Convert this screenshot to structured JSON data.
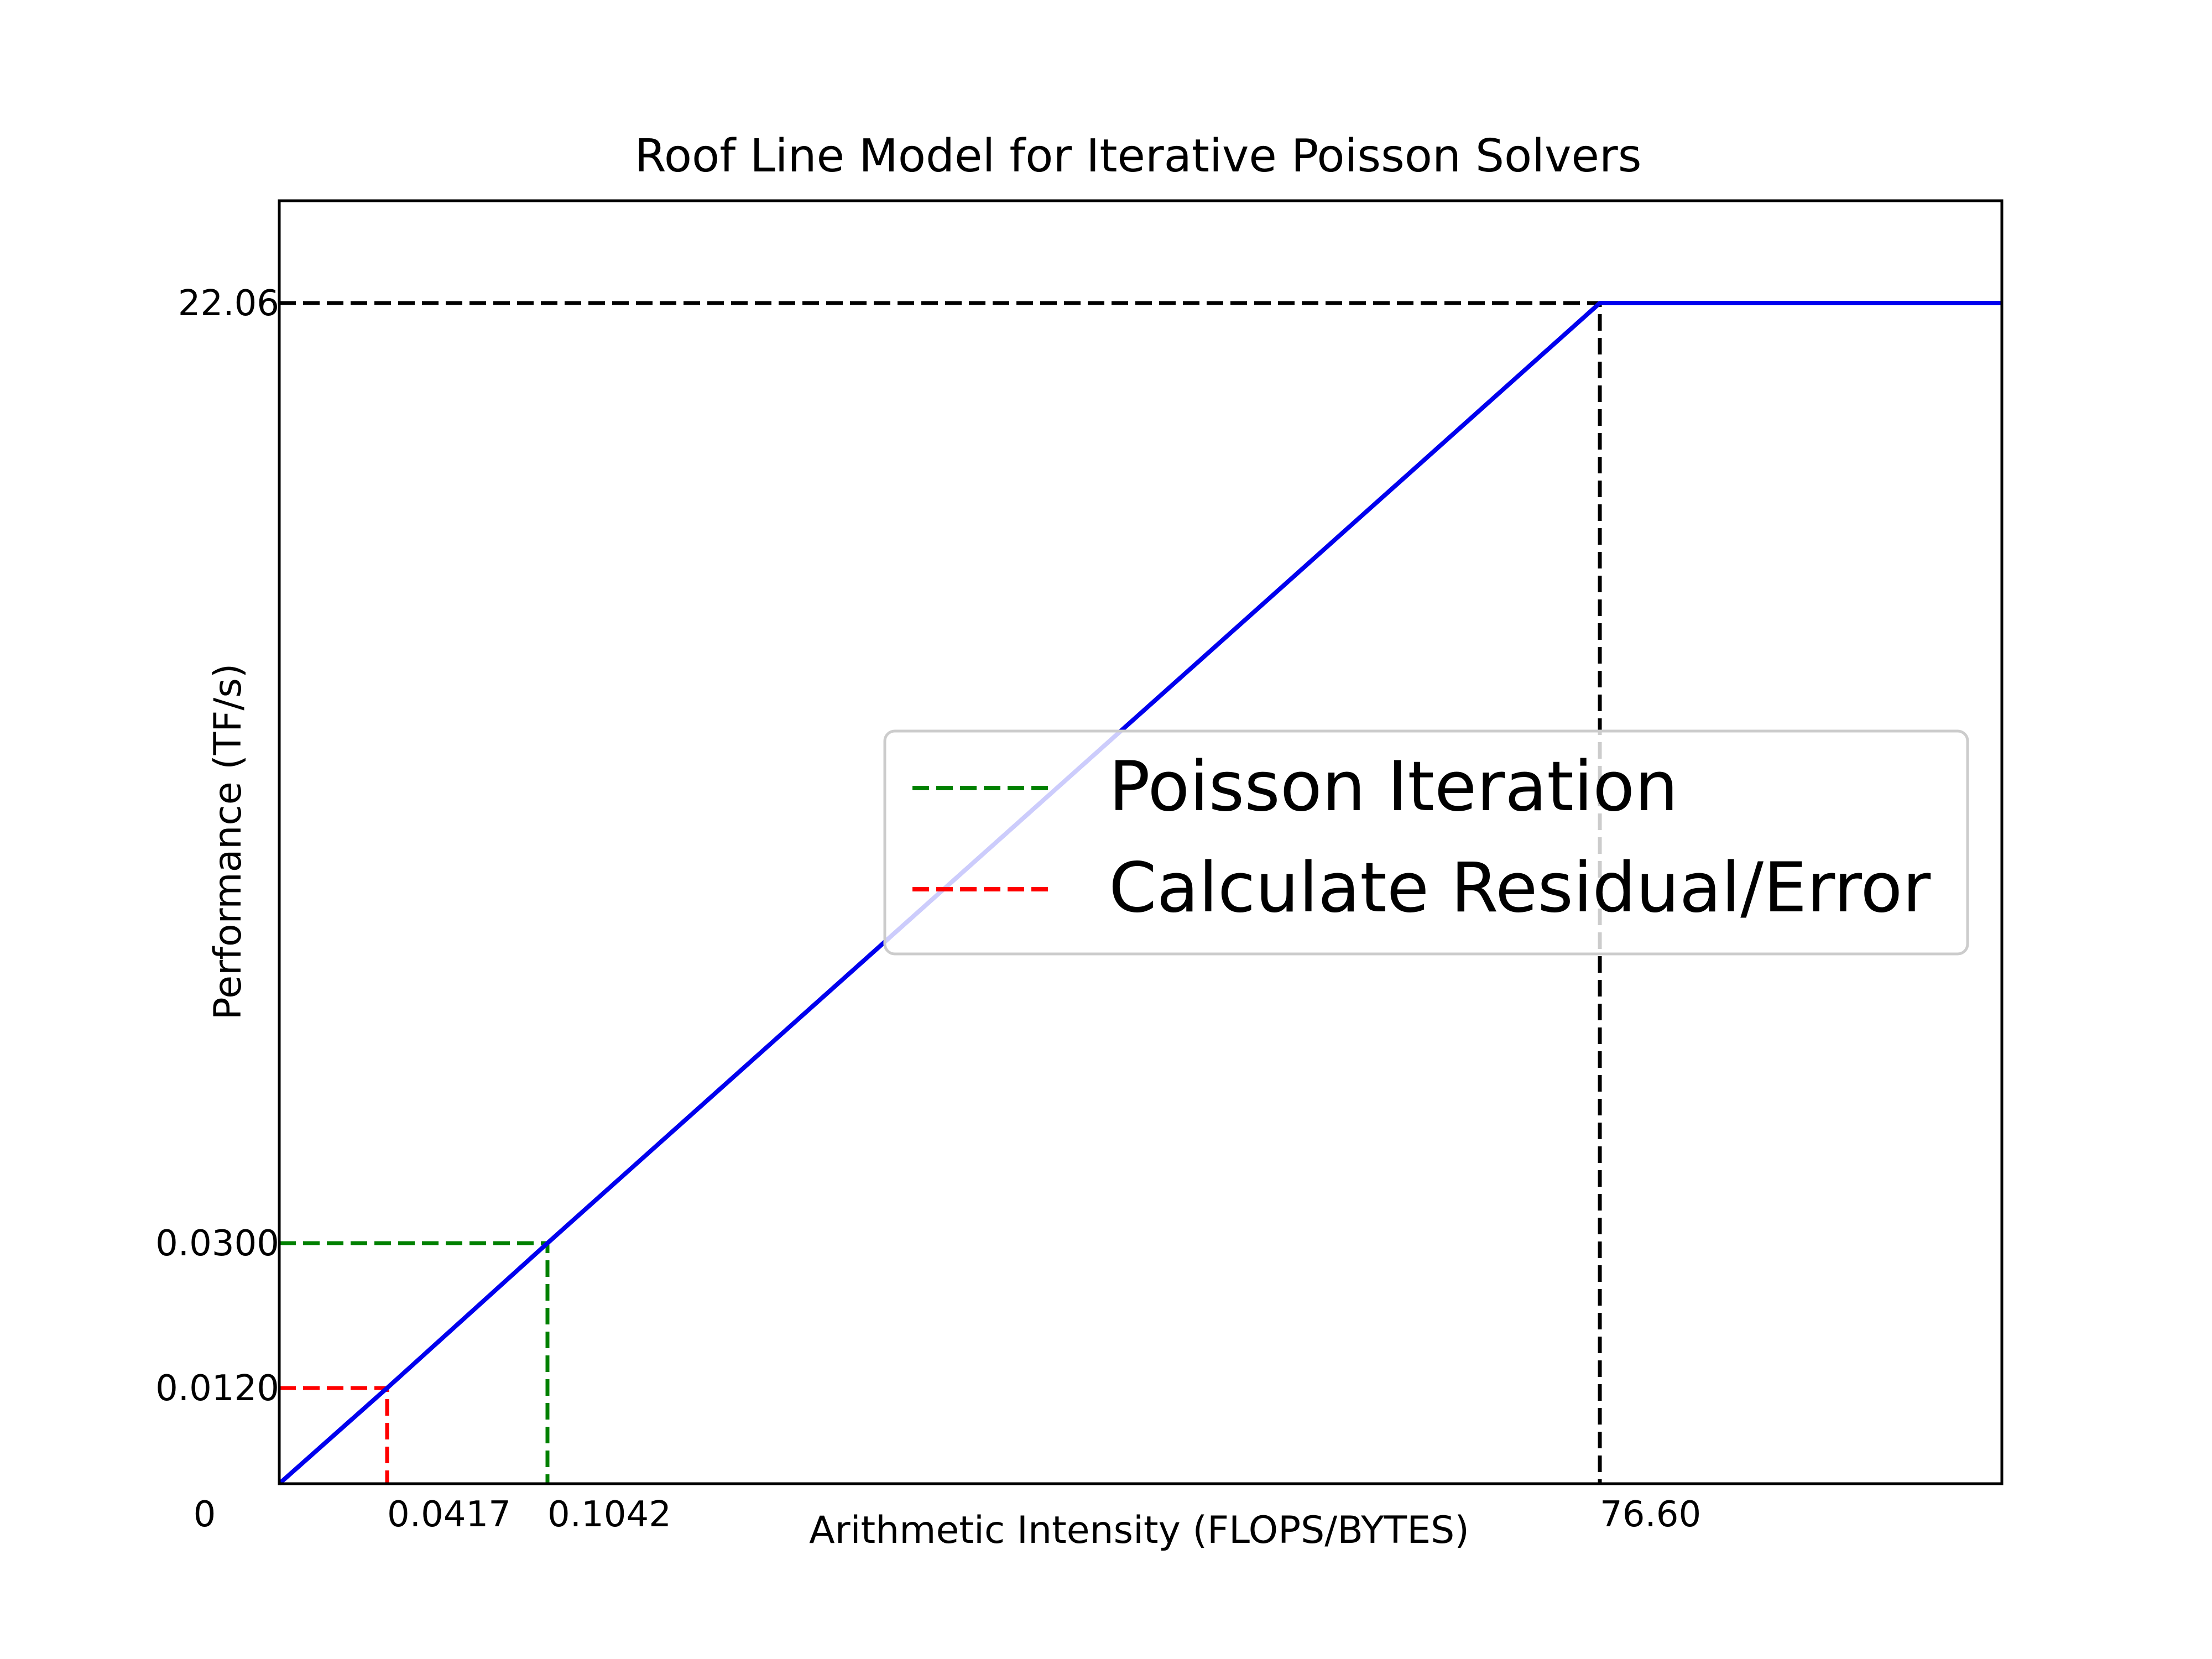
{
  "chart_data": {
    "type": "line",
    "title": "Roof Line Model for Iterative Poisson Solvers",
    "xlabel": "Arithmetic Intensity (FLOPS/BYTES)",
    "ylabel": "Performance (TF/s)",
    "x_ticks": [
      {
        "label": "0",
        "value": 0
      },
      {
        "label": "0.0417",
        "value": 0.0417
      },
      {
        "label": "0.1042",
        "value": 0.1042
      },
      {
        "label": "76.60",
        "value": 76.6
      }
    ],
    "y_ticks": [
      {
        "label": "0",
        "value": 0
      },
      {
        "label": "0.0120",
        "value": 0.012
      },
      {
        "label": "0.0300",
        "value": 0.03
      },
      {
        "label": "22.06",
        "value": 22.06
      }
    ],
    "series": [
      {
        "color": "#0000ee",
        "style": "solid",
        "points": [
          [
            0,
            0
          ],
          [
            0.0417,
            0.012
          ],
          [
            0.1042,
            0.03
          ],
          [
            76.6,
            22.06
          ],
          [
            100,
            22.06
          ]
        ]
      },
      {
        "color": "#000000",
        "style": "dashed",
        "points": [
          [
            0,
            22.06
          ],
          [
            76.6,
            22.06
          ],
          [
            76.6,
            0
          ]
        ]
      },
      {
        "name": "Poisson Iteration",
        "color": "#008000",
        "style": "dashed",
        "points": [
          [
            0,
            0.03
          ],
          [
            0.1042,
            0.03
          ],
          [
            0.1042,
            0
          ]
        ]
      },
      {
        "name": "Calculate Residual/Error",
        "color": "#ff0000",
        "style": "dashed",
        "points": [
          [
            0,
            0.012
          ],
          [
            0.0417,
            0.012
          ],
          [
            0.0417,
            0
          ]
        ]
      }
    ],
    "legend": {
      "placement": "center-right",
      "entries": [
        {
          "label": "Poisson Iteration",
          "color": "#008000"
        },
        {
          "label": "Calculate Residual/Error",
          "color": "#ff0000"
        }
      ]
    },
    "grid": false
  }
}
